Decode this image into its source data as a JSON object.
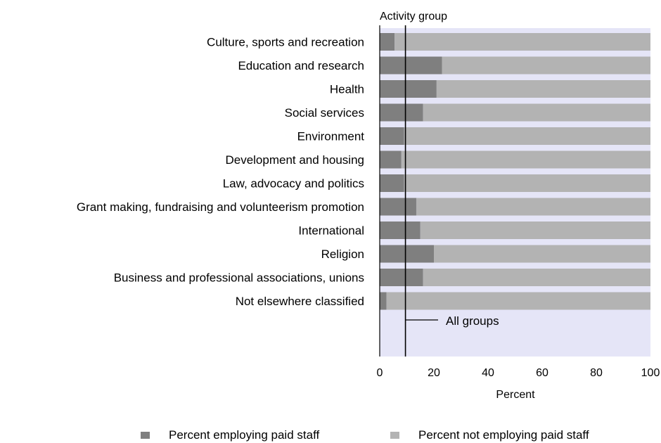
{
  "chart_data": {
    "type": "bar",
    "stacked": true,
    "orientation": "horizontal",
    "title": "Activity group",
    "xlabel": "Percent",
    "xlim": [
      0,
      100
    ],
    "x_ticks": [
      "0",
      "20",
      "40",
      "60",
      "80",
      "100"
    ],
    "categories": [
      "Culture, sports and recreation",
      "Education and research",
      "Health",
      "Social services",
      "Environment",
      "Development and housing",
      "Law, advocacy and politics",
      "Grant making, fundraising and volunteerism promotion",
      "International",
      "Religion",
      "Business and professional associations, unions",
      "Not elsewhere classified"
    ],
    "series": [
      {
        "name": "Percent employing paid staff",
        "color": "#7f7f7f",
        "values": [
          5.5,
          23,
          21,
          16,
          9,
          8,
          9,
          13.5,
          15,
          20,
          16,
          2.5
        ]
      },
      {
        "name": "Percent not employing paid staff",
        "color": "#b3b3b3",
        "values": [
          94.5,
          77,
          79,
          84,
          91,
          92,
          91,
          86.5,
          85,
          80,
          84,
          97.5
        ]
      }
    ],
    "reference_line": {
      "label": "All groups",
      "value": 9.5
    },
    "legend_position": "bottom",
    "plot_background": "#e5e5f7",
    "grid": false
  }
}
